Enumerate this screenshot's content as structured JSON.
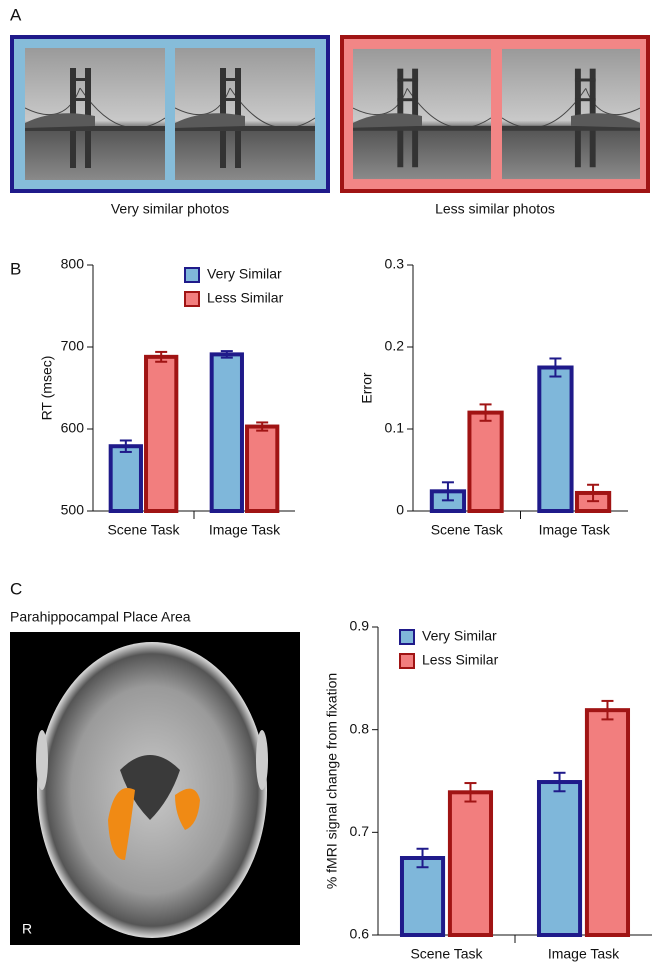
{
  "panels": {
    "a": "A",
    "b": "B",
    "c": "C"
  },
  "photos": {
    "left_caption": "Very similar photos",
    "right_caption": "Less similar photos"
  },
  "brain": {
    "title": "Parahippocampal Place Area",
    "side_label": "R"
  },
  "chart_data": [
    {
      "type": "bar",
      "ylabel": "RT (msec)",
      "categories": [
        "Scene Task",
        "Image Task"
      ],
      "series": [
        {
          "name": "Very Similar",
          "color": "#7fb7da",
          "edge_color": "#1f1a8a",
          "values": [
            579,
            691
          ],
          "errors": [
            7,
            4
          ]
        },
        {
          "name": "Less Similar",
          "color": "#f27e7e",
          "edge_color": "#a01414",
          "values": [
            688,
            603
          ],
          "errors": [
            6,
            5
          ]
        }
      ],
      "ylim": [
        500,
        800
      ],
      "yticks": [
        500,
        600,
        700,
        800
      ],
      "legend": "top-right"
    },
    {
      "type": "bar",
      "ylabel": "Error",
      "categories": [
        "Scene Task",
        "Image Task"
      ],
      "series": [
        {
          "color": "#7fb7da",
          "edge_color": "#1f1a8a",
          "values": [
            0.024,
            0.175
          ],
          "errors": [
            0.011,
            0.011
          ]
        },
        {
          "color": "#f27e7e",
          "edge_color": "#a01414",
          "values": [
            0.12,
            0.022
          ],
          "errors": [
            0.01,
            0.01
          ]
        }
      ],
      "ylim": [
        0,
        0.3
      ],
      "yticks": [
        0,
        0.1,
        0.2,
        0.3
      ]
    },
    {
      "type": "bar",
      "ylabel": "% fMRI signal change from fixation",
      "categories": [
        "Scene Task",
        "Image Task"
      ],
      "series": [
        {
          "name": "Very Similar",
          "color": "#7fb7da",
          "edge_color": "#1f1a8a",
          "values": [
            0.675,
            0.749
          ],
          "errors": [
            0.009,
            0.009
          ]
        },
        {
          "name": "Less Similar",
          "color": "#f27e7e",
          "edge_color": "#a01414",
          "values": [
            0.739,
            0.819
          ],
          "errors": [
            0.009,
            0.009
          ]
        }
      ],
      "ylim": [
        0.6,
        0.9
      ],
      "yticks": [
        0.6,
        0.7,
        0.8,
        0.9
      ],
      "legend": "top-left"
    }
  ]
}
